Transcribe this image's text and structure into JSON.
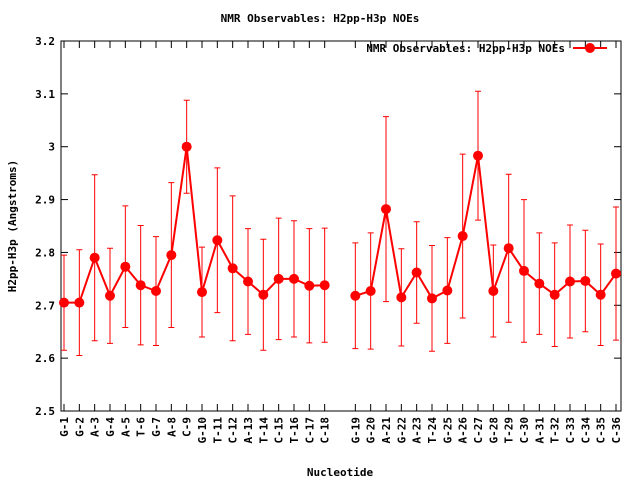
{
  "chart_data": {
    "type": "line",
    "title": "NMR Observables: H2pp-H3p NOEs",
    "x_label": "Nucleotide",
    "y_label": "H2pp-H3p (Angstroms)",
    "categories": [
      "G-1",
      "G-2",
      "A-3",
      "G-4",
      "A-5",
      "T-6",
      "G-7",
      "A-8",
      "C-9",
      "G-10",
      "T-11",
      "C-12",
      "A-13",
      "T-14",
      "C-15",
      "T-16",
      "C-17",
      "C-18",
      null,
      "G-19",
      "G-20",
      "A-21",
      "G-22",
      "A-23",
      "T-24",
      "G-25",
      "A-26",
      "C-27",
      "G-28",
      "T-29",
      "C-30",
      "A-31",
      "T-32",
      "C-33",
      "C-34",
      "C-35",
      "C-36"
    ],
    "series": [
      {
        "name": "NMR Observables: H2pp-H3p NOEs",
        "color": "#ff0000",
        "values": [
          2.705,
          2.705,
          2.79,
          2.718,
          2.773,
          2.738,
          2.727,
          2.795,
          3.0,
          2.725,
          2.823,
          2.77,
          2.745,
          2.72,
          2.75,
          2.75,
          2.737,
          2.738,
          null,
          2.718,
          2.727,
          2.882,
          2.715,
          2.762,
          2.713,
          2.728,
          2.831,
          2.983,
          2.727,
          2.808,
          2.765,
          2.741,
          2.72,
          2.745,
          2.746,
          2.72,
          2.76
        ],
        "errors": [
          0.09,
          0.1,
          0.157,
          0.09,
          0.115,
          0.113,
          0.103,
          0.137,
          0.088,
          0.085,
          0.137,
          0.137,
          0.1,
          0.105,
          0.115,
          0.11,
          0.108,
          0.108,
          null,
          0.1,
          0.11,
          0.175,
          0.092,
          0.096,
          0.1,
          0.1,
          0.155,
          0.122,
          0.087,
          0.14,
          0.135,
          0.096,
          0.098,
          0.107,
          0.096,
          0.096,
          0.126
        ]
      }
    ],
    "ylim": [
      2.5,
      3.2
    ],
    "yticks": [
      2.5,
      2.6,
      2.7,
      2.8,
      2.9,
      3,
      3.1,
      3.2
    ],
    "legend": "top-right"
  }
}
